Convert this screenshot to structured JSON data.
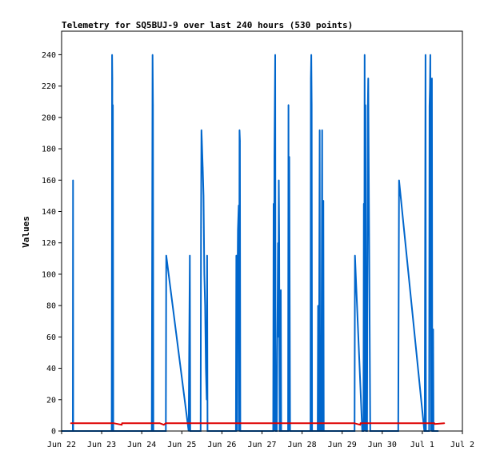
{
  "chart_data": {
    "type": "line",
    "title": "Telemetry for SQ5BUJ-9 over last 240 hours (530 points)",
    "ylabel": "Values",
    "xlabel": "",
    "ylim": [
      0,
      255
    ],
    "xlim": [
      22.0,
      32.0
    ],
    "x_unit": "day-of-month (June; 31 = Jul 1, 32 = Jul 2)",
    "x_tick_values": [
      22,
      23,
      24,
      25,
      26,
      27,
      28,
      29,
      30,
      31,
      32
    ],
    "x_tick_labels": [
      "Jun 22",
      "Jun 23",
      "Jun 24",
      "Jun 25",
      "Jun 26",
      "Jun 27",
      "Jun 28",
      "Jun 29",
      "Jun 30",
      "Jul 1",
      "Jul 2"
    ],
    "y_ticks": [
      0,
      20,
      40,
      60,
      80,
      100,
      120,
      140,
      160,
      180,
      200,
      220,
      240
    ],
    "grid": false,
    "legend": "none",
    "series": [
      {
        "color": "#0066cc",
        "x": [
          22.0,
          22.28,
          22.285,
          22.29,
          22.3,
          23.25,
          23.255,
          23.26,
          23.265,
          23.27,
          23.28,
          23.29,
          23.3,
          24.25,
          24.26,
          24.27,
          24.28,
          24.29,
          24.3,
          24.6,
          24.61,
          25.17,
          25.2,
          25.21,
          25.22,
          25.47,
          25.48,
          25.49,
          25.5,
          25.52,
          25.54,
          25.56,
          25.58,
          25.6,
          25.62,
          25.63,
          25.64,
          25.65,
          25.66,
          26.35,
          26.36,
          26.37,
          26.38,
          26.39,
          26.4,
          26.42,
          26.43,
          26.44,
          26.45,
          26.46,
          26.47,
          26.48,
          26.5,
          26.51,
          26.52,
          26.53,
          26.55,
          27.28,
          27.29,
          27.3,
          27.31,
          27.32,
          27.33,
          27.34,
          27.35,
          27.36,
          27.37,
          27.38,
          27.39,
          27.4,
          27.41,
          27.42,
          27.43,
          27.44,
          27.45,
          27.46,
          27.47,
          27.48,
          27.5,
          27.51,
          27.52,
          27.53,
          27.54,
          27.55,
          27.56,
          27.57,
          27.58,
          27.59,
          27.6,
          27.61,
          27.62,
          27.63,
          27.64,
          27.65,
          27.66,
          27.67,
          27.68,
          27.7,
          27.72,
          27.73,
          27.74,
          28.2,
          28.21,
          28.22,
          28.23,
          28.24,
          28.25,
          28.26,
          28.27,
          28.28,
          28.29,
          28.3,
          28.31,
          28.32,
          28.33,
          28.34,
          28.35,
          28.36,
          28.37,
          28.38,
          28.39,
          28.4,
          28.41,
          28.42,
          28.43,
          28.44,
          28.45,
          28.46,
          28.47,
          28.48,
          28.5,
          28.51,
          28.52,
          28.53,
          28.54,
          28.55,
          28.56,
          28.57,
          28.58,
          28.6,
          28.65,
          29.28,
          29.29,
          29.3,
          29.31,
          29.32,
          29.5,
          29.51,
          29.52,
          29.53,
          29.54,
          29.55,
          29.56,
          29.57,
          29.58,
          29.6,
          29.62,
          29.64,
          29.65,
          29.7,
          29.72,
          29.74,
          29.75,
          29.76,
          30.38,
          30.39,
          30.4,
          30.42,
          31.05,
          31.06,
          31.07,
          31.08,
          31.09,
          31.1,
          31.12,
          31.14,
          31.16,
          31.17,
          31.18,
          31.19,
          31.2,
          31.22,
          31.24,
          31.25,
          31.26,
          31.27,
          31.28,
          31.3,
          31.35,
          31.4
        ],
        "values": [
          0,
          0,
          160,
          0,
          0,
          0,
          120,
          240,
          225,
          0,
          208,
          0,
          0,
          0,
          120,
          240,
          208,
          0,
          0,
          0,
          112,
          0,
          112,
          0,
          0,
          0,
          130,
          192,
          185,
          168,
          150,
          100,
          80,
          40,
          20,
          112,
          0,
          0,
          0,
          0,
          112,
          55,
          0,
          95,
          128,
          144,
          0,
          192,
          185,
          0,
          0,
          0,
          0,
          0,
          0,
          0,
          0,
          0,
          145,
          0,
          175,
          208,
          240,
          0,
          0,
          0,
          0,
          50,
          80,
          120,
          60,
          160,
          120,
          0,
          0,
          80,
          90,
          0,
          0,
          0,
          0,
          0,
          0,
          0,
          0,
          0,
          0,
          0,
          0,
          0,
          0,
          0,
          0,
          0,
          208,
          0,
          175,
          0,
          0,
          0,
          0,
          0,
          0,
          225,
          240,
          208,
          0,
          0,
          0,
          0,
          0,
          0,
          0,
          0,
          0,
          0,
          0,
          0,
          0,
          0,
          0,
          80,
          0,
          0,
          104,
          192,
          0,
          0,
          0,
          0,
          192,
          0,
          0,
          147,
          0,
          0,
          0,
          0,
          0,
          0,
          0,
          0,
          0,
          0,
          0,
          112,
          0,
          0,
          0,
          0,
          145,
          48,
          240,
          0,
          208,
          0,
          0,
          207,
          225,
          0,
          0,
          0,
          0,
          0,
          0,
          0,
          0,
          160,
          0,
          0,
          120,
          240,
          0,
          0,
          0,
          0,
          0,
          0,
          207,
          218,
          240,
          0,
          225,
          0,
          0,
          65,
          0,
          0,
          0,
          0
        ]
      },
      {
        "color": "#dd0000",
        "x": [
          22.23,
          23.3,
          23.5,
          23.51,
          24.45,
          24.55,
          24.6,
          29.3,
          29.45,
          29.46,
          31.3,
          31.31,
          31.55
        ],
        "values": [
          5,
          5,
          4,
          5,
          5,
          4,
          5,
          5,
          4,
          5,
          5,
          4.5,
          5
        ]
      }
    ]
  }
}
